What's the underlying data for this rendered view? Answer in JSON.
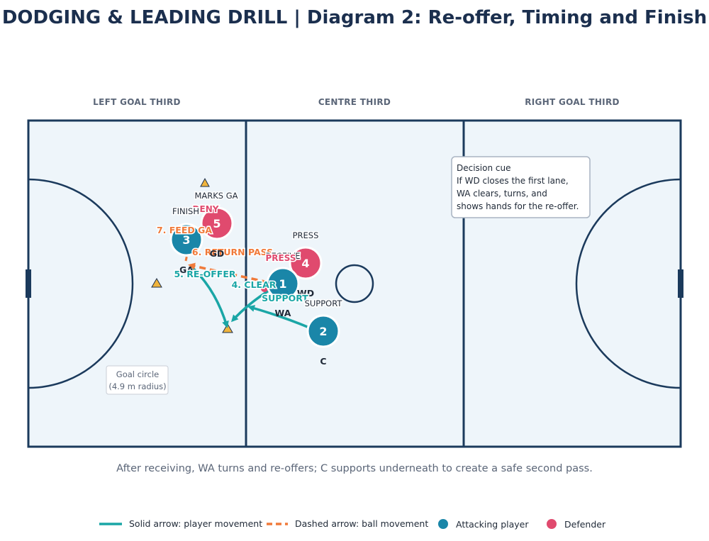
{
  "title": "DODGING & LEADING DRILL | Diagram 2: Re-offer, Timing and Finish",
  "zones": [
    "LEFT GOAL THIRD",
    "CENTRE THIRD",
    "RIGHT GOAL THIRD"
  ],
  "colors": {
    "court_line": "#1b3a5c",
    "court_fill": "#eef5fa",
    "attacker": "#1a86a8",
    "defender": "#e04a6e",
    "movement": "#1aa6a6",
    "ball": "#f07a3a",
    "cone": "#f0b43c"
  },
  "players": {
    "p1": {
      "num": "1",
      "role": "WD",
      "tag": "SUPPORT"
    },
    "p2": {
      "num": "2",
      "role": "C",
      "tag": "SUPPORT"
    },
    "p3": {
      "num": "3",
      "role": "GA",
      "tag": "FINISH"
    },
    "p4": {
      "num": "4",
      "role": "RECEIVE",
      "tag": "PRESS",
      "tag2": "PRESS"
    },
    "p5": {
      "num": "5",
      "role": "GD",
      "tag": "MARKS GA",
      "tag2": "DENY"
    }
  },
  "labels": {
    "wa": "WA",
    "clear": "4. CLEAR",
    "reoffer": "5. RE-OFFER",
    "return_pass": "6. RETURN PASS",
    "feed": "7. FEED GA"
  },
  "goal_circle_note": [
    "Goal circle",
    "(4.9 m radius)"
  ],
  "decision_cue": [
    "Decision cue",
    "If WD closes the first lane,",
    "WA clears, turns, and",
    "shows hands for the re-offer."
  ],
  "caption": "After receiving, WA turns and re-offers; C supports underneath to create a safe second pass.",
  "legend": [
    {
      "icon": "solid-arrow",
      "label": "Solid arrow: player movement"
    },
    {
      "icon": "dashed-arrow",
      "label": "Dashed arrow: ball movement"
    },
    {
      "icon": "attacker-dot",
      "label": "Attacking player"
    },
    {
      "icon": "defender-dot",
      "label": "Defender"
    }
  ]
}
